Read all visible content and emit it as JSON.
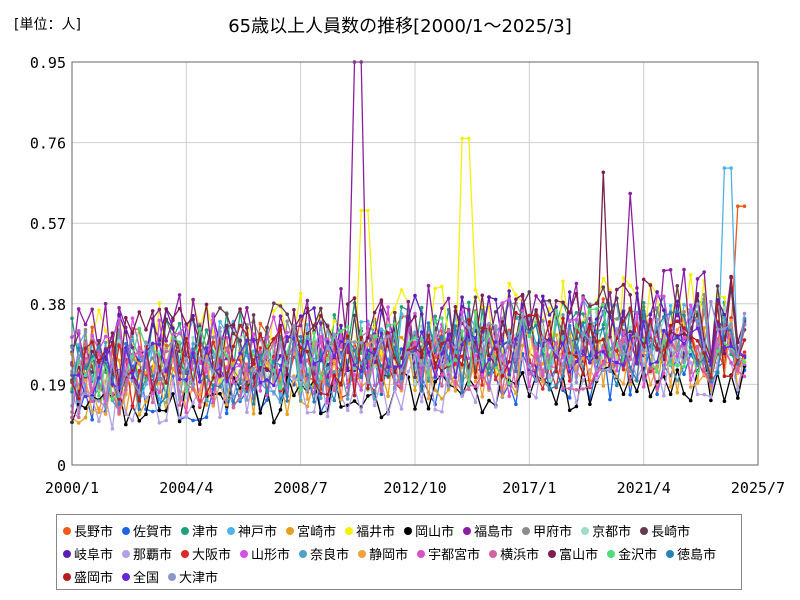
{
  "chart_data": {
    "type": "line",
    "title": "65歳以上人員数の推移[2000/1～2025/3]",
    "unit_label": "[単位：人]",
    "xlabel": "",
    "ylabel": "",
    "x_range": [
      "2000/1",
      "2025/7"
    ],
    "ylim": [
      0,
      0.95
    ],
    "y_ticks": [
      "0",
      "0.19",
      "0.38",
      "0.57",
      "0.76",
      "0.95"
    ],
    "x_ticks": [
      "2000/1",
      "2004/4",
      "2008/7",
      "2012/10",
      "2017/1",
      "2021/4",
      "2025/7"
    ],
    "grid": true,
    "legend_position": "bottom",
    "series": [
      {
        "name": "長野市",
        "color": "#f05a1e",
        "base": 0.24,
        "amp": 0.09,
        "start": "2000/1",
        "end": "2025/3"
      },
      {
        "name": "佐賀市",
        "color": "#1e64e6",
        "base": 0.17,
        "amp": 0.08,
        "start": "2000/1",
        "end": "2025/3"
      },
      {
        "name": "津市",
        "color": "#1ea078",
        "base": 0.25,
        "amp": 0.1,
        "start": "2000/1",
        "end": "2025/3"
      },
      {
        "name": "神戸市",
        "color": "#50b4e6",
        "base": 0.23,
        "amp": 0.1,
        "start": "2000/1",
        "end": "2025/3"
      },
      {
        "name": "宮崎市",
        "color": "#e6a01e",
        "base": 0.18,
        "amp": 0.09,
        "start": "2000/1",
        "end": "2025/3"
      },
      {
        "name": "福井市",
        "color": "#f5f00a",
        "base": 0.27,
        "amp": 0.11,
        "start": "2000/1",
        "end": "2025/3"
      },
      {
        "name": "岡山市",
        "color": "#000000",
        "base": 0.13,
        "amp": 0.06,
        "start": "2000/1",
        "end": "2025/3"
      },
      {
        "name": "福島市",
        "color": "#8c1ea0",
        "base": 0.28,
        "amp": 0.11,
        "start": "2000/1",
        "end": "2025/3"
      },
      {
        "name": "甲府市",
        "color": "#8c8c8c",
        "base": 0.24,
        "amp": 0.09,
        "start": "2000/1",
        "end": "2025/3"
      },
      {
        "name": "京都市",
        "color": "#a0dcc8",
        "base": 0.22,
        "amp": 0.08,
        "start": "2000/1",
        "end": "2025/3"
      },
      {
        "name": "長崎市",
        "color": "#643c50",
        "base": 0.26,
        "amp": 0.1,
        "start": "2000/1",
        "end": "2025/3"
      },
      {
        "name": "岐阜市",
        "color": "#5a1eb4",
        "base": 0.26,
        "amp": 0.1,
        "start": "2000/1",
        "end": "2025/3"
      },
      {
        "name": "那覇市",
        "color": "#b4a0e6",
        "base": 0.15,
        "amp": 0.07,
        "start": "2000/1",
        "end": "2025/3"
      },
      {
        "name": "大阪市",
        "color": "#dc2828",
        "base": 0.2,
        "amp": 0.08,
        "start": "2000/1",
        "end": "2025/3"
      },
      {
        "name": "山形市",
        "color": "#d250e6",
        "base": 0.24,
        "amp": 0.1,
        "start": "2000/1",
        "end": "2025/3"
      },
      {
        "name": "奈良市",
        "color": "#50a0c8",
        "base": 0.21,
        "amp": 0.09,
        "start": "2000/1",
        "end": "2025/3"
      },
      {
        "name": "静岡市",
        "color": "#f0a03c",
        "base": 0.19,
        "amp": 0.08,
        "start": "2000/1",
        "end": "2025/3"
      },
      {
        "name": "宇都宮市",
        "color": "#dc50c8",
        "base": 0.2,
        "amp": 0.09,
        "start": "2000/1",
        "end": "2025/3"
      },
      {
        "name": "横浜市",
        "color": "#d264a0",
        "base": 0.2,
        "amp": 0.09,
        "start": "2000/1",
        "end": "2025/3"
      },
      {
        "name": "富山市",
        "color": "#7a2050",
        "base": 0.27,
        "amp": 0.1,
        "start": "2000/1",
        "end": "2025/3"
      },
      {
        "name": "金沢市",
        "color": "#50dc78",
        "base": 0.23,
        "amp": 0.09,
        "start": "2000/1",
        "end": "2025/3"
      },
      {
        "name": "徳島市",
        "color": "#2882b4",
        "base": 0.21,
        "amp": 0.09,
        "start": "2000/1",
        "end": "2025/3"
      },
      {
        "name": "盛岡市",
        "color": "#b41e1e",
        "base": 0.22,
        "amp": 0.09,
        "start": "2000/1",
        "end": "2025/3"
      },
      {
        "name": "全国",
        "color": "#6428dc",
        "base": 0.22,
        "amp": 0.06,
        "start": "2000/1",
        "end": "2025/3"
      },
      {
        "name": "大津市",
        "color": "#8c96c8",
        "base": 0.22,
        "amp": 0.09,
        "start": "2000/1",
        "end": "2025/3"
      }
    ],
    "peaks": [
      {
        "series": "福島市",
        "x": "2010/8",
        "y": 0.95
      },
      {
        "series": "福井市",
        "x": "2014/8",
        "y": 0.77
      },
      {
        "series": "神戸市",
        "x": "2024/6",
        "y": 0.7
      },
      {
        "series": "富山市",
        "x": "2019/10",
        "y": 0.69
      },
      {
        "series": "福島市",
        "x": "2020/10",
        "y": 0.64
      },
      {
        "series": "長野市",
        "x": "2024/12",
        "y": 0.61
      },
      {
        "series": "福井市",
        "x": "2010/11",
        "y": 0.6
      }
    ]
  }
}
